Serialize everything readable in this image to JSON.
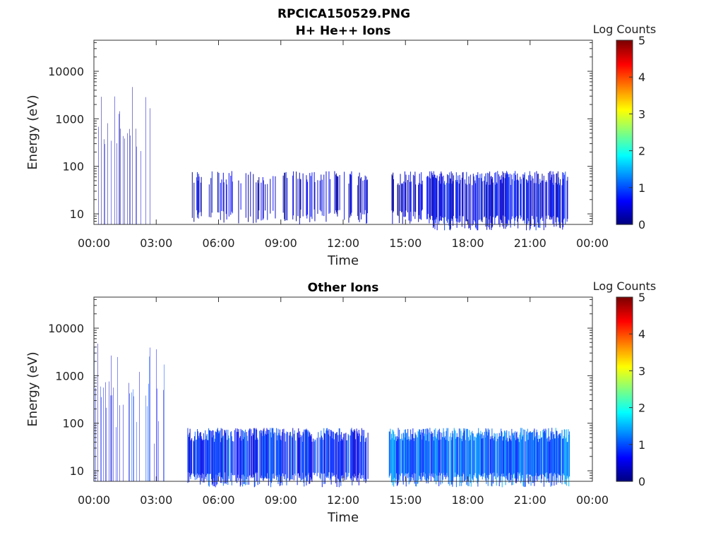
{
  "figure_title": "RPCICA150529.PNG",
  "chart_data": [
    {
      "type": "heatmap",
      "title": "H+ He++ Ions",
      "xlabel": "Time",
      "ylabel": "Energy (eV)",
      "x_ticks": [
        "00:00",
        "03:00",
        "06:00",
        "09:00",
        "12:00",
        "15:00",
        "18:00",
        "21:00",
        "00:00"
      ],
      "x_range_hours": [
        0,
        24
      ],
      "y_ticks": [
        {
          "value": 10,
          "label": "10"
        },
        {
          "value": 100,
          "label": "100"
        },
        {
          "value": 1000,
          "label": "1000"
        },
        {
          "value": 10000,
          "label": "10000"
        }
      ],
      "y_range": [
        6,
        45000
      ],
      "y_scale": "log",
      "colorbar": {
        "label": "Log Counts",
        "ticks": [
          "0",
          "1",
          "2",
          "3",
          "4",
          "5"
        ],
        "range": [
          0,
          5
        ],
        "colormap": "jet"
      },
      "activity": [
        {
          "start_h": 0.0,
          "end_h": 2.7,
          "emax": 5000,
          "emin": 6,
          "level": 0.25,
          "density": 0.3
        },
        {
          "start_h": 4.5,
          "end_h": 13.2,
          "emax": 80,
          "emin": 8,
          "level": 0.35,
          "density": 0.3
        },
        {
          "start_h": 14.3,
          "end_h": 16.1,
          "emax": 80,
          "emin": 8,
          "level": 0.4,
          "density": 0.55
        },
        {
          "start_h": 16.1,
          "end_h": 22.8,
          "emax": 80,
          "emin": 6,
          "level": 0.55,
          "density": 0.75
        }
      ]
    },
    {
      "type": "heatmap",
      "title": "Other Ions",
      "xlabel": "Time",
      "ylabel": "Energy (eV)",
      "x_ticks": [
        "00:00",
        "03:00",
        "06:00",
        "09:00",
        "12:00",
        "15:00",
        "18:00",
        "21:00",
        "00:00"
      ],
      "x_range_hours": [
        0,
        24
      ],
      "y_ticks": [
        {
          "value": 10,
          "label": "10"
        },
        {
          "value": 100,
          "label": "100"
        },
        {
          "value": 1000,
          "label": "1000"
        },
        {
          "value": 10000,
          "label": "10000"
        }
      ],
      "y_range": [
        6,
        45000
      ],
      "y_scale": "log",
      "colorbar": {
        "label": "Log Counts",
        "ticks": [
          "0",
          "1",
          "2",
          "3",
          "4",
          "5"
        ],
        "range": [
          0,
          5
        ],
        "colormap": "jet"
      },
      "activity": [
        {
          "start_h": 0.0,
          "end_h": 3.4,
          "emax": 5000,
          "emin": 6,
          "level": 0.7,
          "density": 0.3
        },
        {
          "start_h": 4.5,
          "end_h": 13.2,
          "emax": 80,
          "emin": 6,
          "level": 0.75,
          "density": 0.85
        },
        {
          "start_h": 14.2,
          "end_h": 22.9,
          "emax": 80,
          "emin": 6,
          "level": 1.1,
          "density": 0.95
        }
      ]
    }
  ]
}
